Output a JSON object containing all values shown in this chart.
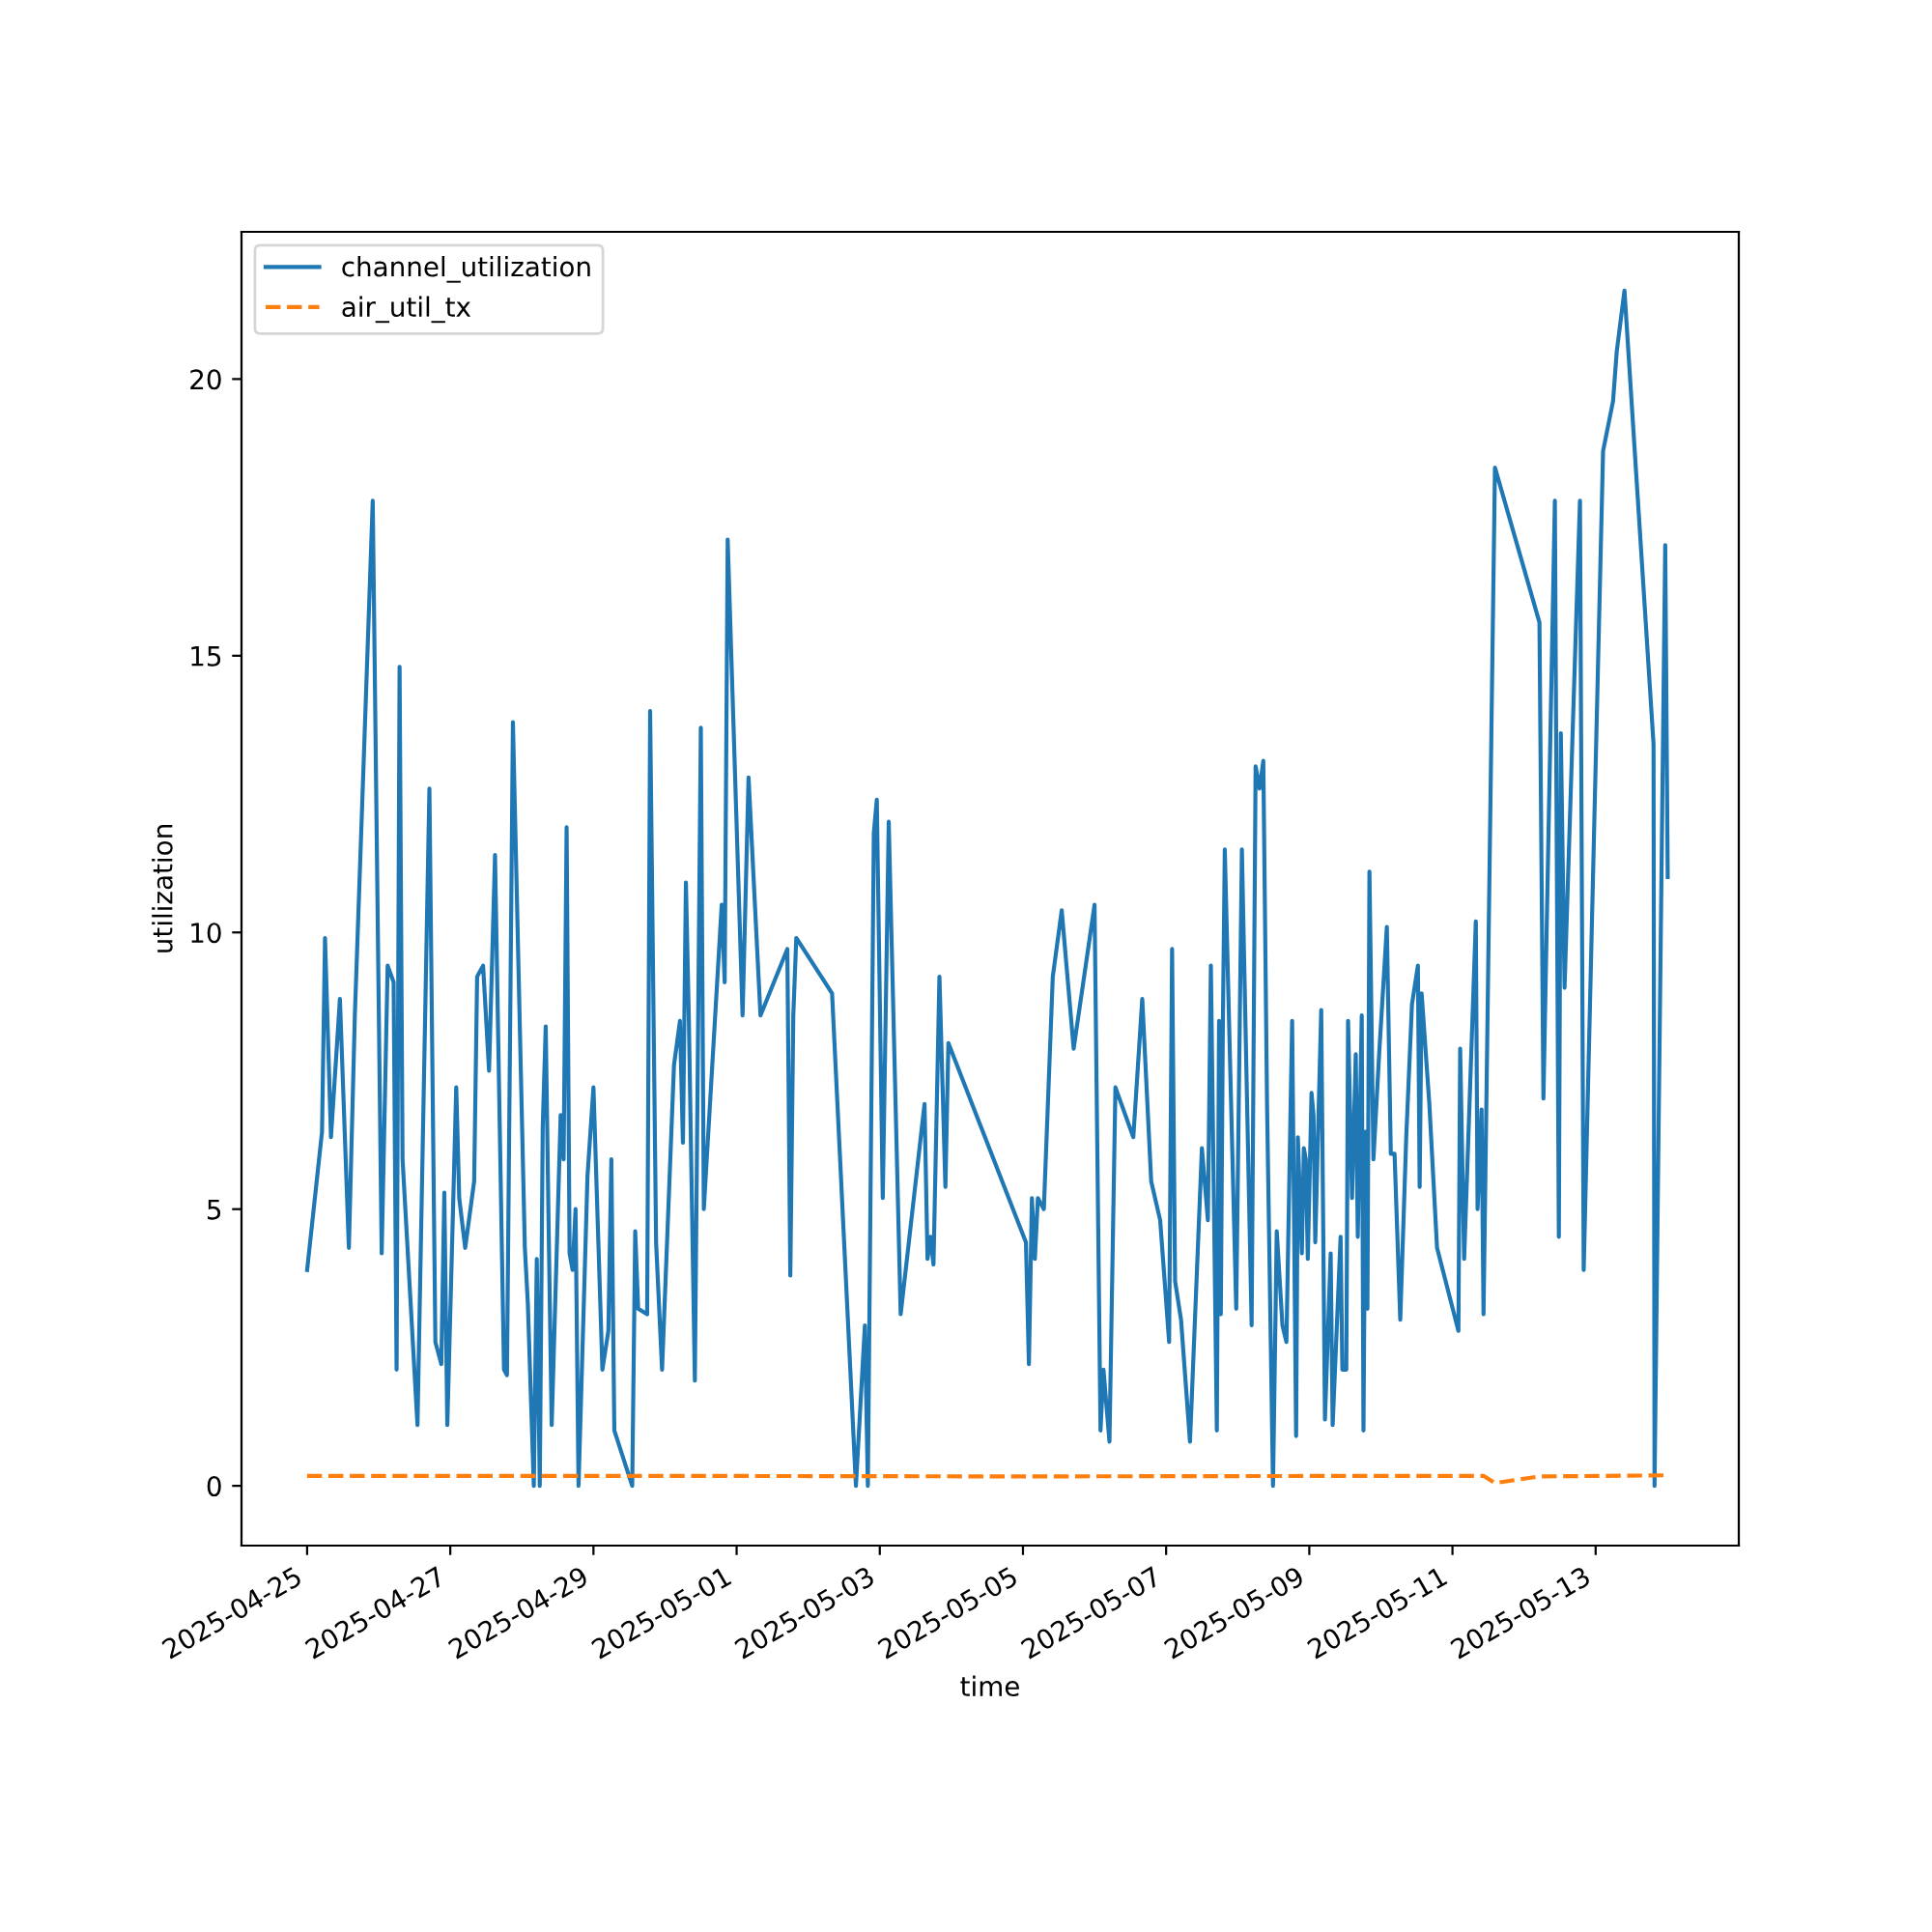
{
  "chart_data": {
    "type": "line",
    "xlabel": "time",
    "ylabel": "utilization",
    "xlim": [
      "2025-04-24T02:00",
      "2025-05-15T00:00"
    ],
    "xticks": [
      "2025-04-25",
      "2025-04-27",
      "2025-04-29",
      "2025-05-01",
      "2025-05-03",
      "2025-05-05",
      "2025-05-07",
      "2025-05-09",
      "2025-05-11",
      "2025-05-13"
    ],
    "ylim": [
      -1.08,
      22.66
    ],
    "yticks": [
      0,
      5,
      10,
      15,
      20
    ],
    "grid": false,
    "legend": "top left",
    "series": [
      {
        "name": "channel_utilization",
        "color": "#1f77b4",
        "line_style": "solid",
        "x": [
          "2025-04-25T00:00",
          "2025-04-25T05:00",
          "2025-04-25T06:00",
          "2025-04-25T08:00",
          "2025-04-25T11:00",
          "2025-04-25T14:00",
          "2025-04-25T16:00",
          "2025-04-25T22:00",
          "2025-04-26T01:00",
          "2025-04-26T03:00",
          "2025-04-26T05:00",
          "2025-04-26T06:00",
          "2025-04-26T07:00",
          "2025-04-26T08:00",
          "2025-04-26T13:00",
          "2025-04-26T17:00",
          "2025-04-26T19:00",
          "2025-04-26T21:00",
          "2025-04-26T22:00",
          "2025-04-26T23:00",
          "2025-04-27T02:00",
          "2025-04-27T03:00",
          "2025-04-27T05:00",
          "2025-04-27T08:00",
          "2025-04-27T09:00",
          "2025-04-27T11:00",
          "2025-04-27T13:00",
          "2025-04-27T15:00",
          "2025-04-27T18:00",
          "2025-04-27T19:00",
          "2025-04-27T21:00",
          "2025-04-28T01:00",
          "2025-04-28T02:00",
          "2025-04-28T04:00",
          "2025-04-28T05:00",
          "2025-04-28T06:00",
          "2025-04-28T07:00",
          "2025-04-28T08:00",
          "2025-04-28T09:00",
          "2025-04-28T10:00",
          "2025-04-28T13:00",
          "2025-04-28T14:00",
          "2025-04-28T15:00",
          "2025-04-28T16:00",
          "2025-04-28T17:00",
          "2025-04-28T18:00",
          "2025-04-28T19:00",
          "2025-04-28T22:00",
          "2025-04-29T00:00",
          "2025-04-29T03:00",
          "2025-04-29T05:00",
          "2025-04-29T06:00",
          "2025-04-29T07:00",
          "2025-04-29T13:00",
          "2025-04-29T14:00",
          "2025-04-29T15:00",
          "2025-04-29T18:00",
          "2025-04-29T19:00",
          "2025-04-29T21:00",
          "2025-04-29T23:00",
          "2025-04-30T03:00",
          "2025-04-30T05:00",
          "2025-04-30T06:00",
          "2025-04-30T07:00",
          "2025-04-30T08:00",
          "2025-04-30T10:00",
          "2025-04-30T12:00",
          "2025-04-30T13:00",
          "2025-04-30T19:00",
          "2025-04-30T20:00",
          "2025-04-30T21:00",
          "2025-05-01T02:00",
          "2025-05-01T04:00",
          "2025-05-01T08:00",
          "2025-05-01T17:00",
          "2025-05-01T18:00",
          "2025-05-01T19:00",
          "2025-05-01T20:00",
          "2025-05-02T08:00",
          "2025-05-02T16:00",
          "2025-05-02T19:00",
          "2025-05-02T20:00",
          "2025-05-02T22:00",
          "2025-05-02T23:00",
          "2025-05-03T01:00",
          "2025-05-03T03:00",
          "2025-05-03T07:00",
          "2025-05-03T15:00",
          "2025-05-03T16:00",
          "2025-05-03T17:00",
          "2025-05-03T18:00",
          "2025-05-03T20:00",
          "2025-05-03T22:00",
          "2025-05-03T23:00",
          "2025-05-05T01:00",
          "2025-05-05T02:00",
          "2025-05-05T03:00",
          "2025-05-05T04:00",
          "2025-05-05T05:00",
          "2025-05-05T07:00",
          "2025-05-05T10:00",
          "2025-05-05T13:00",
          "2025-05-05T17:00",
          "2025-05-06T00:00",
          "2025-05-06T02:00",
          "2025-05-06T03:00",
          "2025-05-06T05:00",
          "2025-05-06T07:00",
          "2025-05-06T13:00",
          "2025-05-06T16:00",
          "2025-05-06T19:00",
          "2025-05-06T22:00",
          "2025-05-07T01:00",
          "2025-05-07T02:00",
          "2025-05-07T03:00",
          "2025-05-07T05:00",
          "2025-05-07T08:00",
          "2025-05-07T12:00",
          "2025-05-07T14:00",
          "2025-05-07T15:00",
          "2025-05-07T17:00",
          "2025-05-07T17:45",
          "2025-05-07T18:20",
          "2025-05-07T19:00",
          "2025-05-07T19:40",
          "2025-05-07T23:30",
          "2025-05-08T01:24",
          "2025-05-08T04:40",
          "2025-05-08T06:00",
          "2025-05-08T07:20",
          "2025-05-08T08:35",
          "2025-05-08T09:50",
          "2025-05-08T11:50",
          "2025-05-08T13:05",
          "2025-05-08T15:00",
          "2025-05-08T16:20",
          "2025-05-08T18:15",
          "2025-05-08T19:35",
          "2025-05-08T20:10",
          "2025-05-08T21:30",
          "2025-05-08T22:10",
          "2025-05-08T22:50",
          "2025-05-08T23:30",
          "2025-05-09T00:45",
          "2025-05-09T01:25",
          "2025-05-09T02:00",
          "2025-05-09T04:00",
          "2025-05-09T05:15",
          "2025-05-09T07:10",
          "2025-05-09T07:50",
          "2025-05-09T10:30",
          "2025-05-09T11:05",
          "2025-05-09T12:25",
          "2025-05-09T13:00",
          "2025-05-09T14:20",
          "2025-05-09T15:35",
          "2025-05-09T16:15",
          "2025-05-09T17:35",
          "2025-05-09T18:10",
          "2025-05-09T18:50",
          "2025-05-09T19:30",
          "2025-05-09T20:10",
          "2025-05-09T21:30",
          "2025-05-09T23:25",
          "2025-05-10T02:00",
          "2025-05-10T03:20",
          "2025-05-10T04:35",
          "2025-05-10T06:30",
          "2025-05-10T08:30",
          "2025-05-10T10:25",
          "2025-05-10T12:25",
          "2025-05-10T13:00",
          "2025-05-10T13:40",
          "2025-05-10T16:15",
          "2025-05-10T18:50",
          "2025-05-11T02:00",
          "2025-05-11T02:35",
          "2025-05-11T03:55",
          "2025-05-11T07:50",
          "2025-05-11T08:25",
          "2025-05-11T09:45",
          "2025-05-11T10:25",
          "2025-05-11T14:15",
          "2025-05-12T05:10",
          "2025-05-12T06:30",
          "2025-05-12T10:20",
          "2025-05-12T11:40",
          "2025-05-12T12:20",
          "2025-05-12T13:35",
          "2025-05-12T18:45",
          "2025-05-12T20:00",
          "2025-05-13T02:30",
          "2025-05-13T05:50",
          "2025-05-13T07:05",
          "2025-05-13T09:40",
          "2025-05-13T19:25",
          "2025-05-13T19:45",
          "2025-05-13T23:20",
          "2025-05-14T00:10"
        ],
        "values": [
          3.9,
          6.4,
          9.9,
          6.3,
          8.8,
          4.3,
          8.5,
          17.8,
          4.2,
          9.4,
          9.1,
          2.1,
          14.8,
          5.9,
          1.1,
          12.6,
          2.6,
          2.2,
          5.3,
          1.1,
          7.2,
          5.2,
          4.3,
          5.5,
          9.2,
          9.4,
          7.5,
          11.4,
          2.1,
          2.0,
          13.8,
          4.3,
          3.3,
          0.0,
          4.1,
          0.0,
          6.5,
          8.3,
          4.6,
          1.1,
          6.7,
          5.9,
          11.9,
          4.2,
          3.9,
          5.0,
          0.0,
          5.6,
          7.2,
          2.1,
          2.8,
          5.9,
          1.0,
          0.0,
          4.6,
          3.2,
          3.1,
          14.0,
          4.4,
          2.1,
          7.6,
          8.4,
          6.2,
          10.9,
          8.4,
          1.9,
          13.7,
          5.0,
          10.5,
          9.1,
          17.1,
          8.5,
          12.8,
          8.5,
          9.7,
          3.8,
          8.5,
          9.9,
          8.9,
          0.0,
          2.9,
          0.0,
          11.8,
          12.4,
          5.2,
          12.0,
          3.1,
          6.9,
          4.1,
          4.5,
          4.0,
          9.2,
          5.4,
          8.0,
          4.4,
          2.2,
          5.2,
          4.1,
          5.2,
          5.0,
          9.2,
          10.4,
          7.9,
          10.5,
          1.0,
          2.1,
          0.8,
          7.2,
          6.3,
          8.8,
          5.5,
          4.8,
          2.6,
          9.7,
          3.7,
          3.0,
          0.8,
          6.1,
          4.8,
          9.4,
          1.0,
          8.4,
          3.1,
          8.2,
          11.5,
          3.2,
          11.5,
          2.9,
          13.0,
          12.6,
          13.1,
          6.9,
          0.0,
          4.6,
          2.9,
          2.6,
          8.4,
          0.9,
          6.3,
          4.2,
          6.1,
          5.9,
          4.1,
          7.1,
          6.7,
          4.4,
          8.6,
          1.2,
          4.2,
          1.1,
          4.5,
          2.1,
          2.1,
          8.4,
          5.2,
          7.8,
          4.5,
          8.5,
          1.0,
          6.4,
          3.2,
          11.1,
          5.9,
          7.8,
          10.1,
          6.0,
          6.0,
          3.0,
          6.3,
          8.7,
          9.4,
          5.4,
          8.9,
          6.9,
          4.3,
          2.8,
          7.9,
          4.1,
          10.2,
          5.0,
          6.8,
          3.1,
          18.4,
          15.6,
          7.0,
          17.8,
          4.5,
          13.6,
          9.0,
          17.8,
          3.9,
          18.7,
          19.6,
          20.5,
          21.6,
          13.4,
          0.0,
          17.0,
          11.0
        ]
      },
      {
        "name": "air_util_tx",
        "color": "#ff7f0e",
        "line_style": "dashed",
        "x": [
          "2025-04-25T00:00",
          "2025-04-30T00:00",
          "2025-05-05T00:00",
          "2025-05-10T00:00",
          "2025-05-11T10:25",
          "2025-05-11T14:15",
          "2025-05-12T05:10",
          "2025-05-14T00:10"
        ],
        "values": [
          0.18,
          0.18,
          0.17,
          0.18,
          0.18,
          0.05,
          0.17,
          0.19
        ]
      }
    ]
  }
}
